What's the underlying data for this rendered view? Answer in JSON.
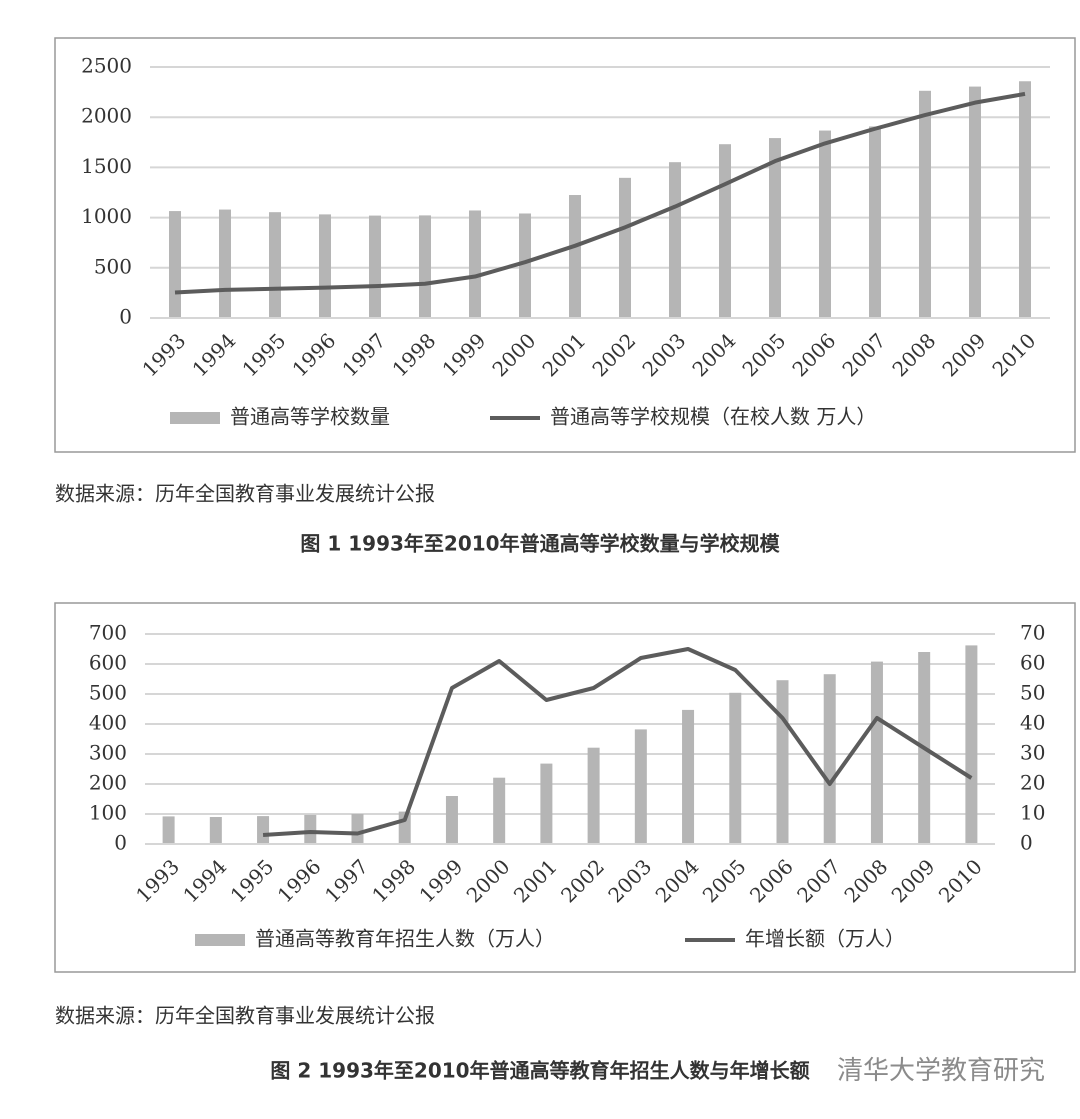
{
  "chart_data": [
    {
      "type": "bar-line",
      "categories": [
        "1993",
        "1994",
        "1995",
        "1996",
        "1997",
        "1998",
        "1999",
        "2000",
        "2001",
        "2002",
        "2003",
        "2004",
        "2005",
        "2006",
        "2007",
        "2008",
        "2009",
        "2010"
      ],
      "series": [
        {
          "name": "普通高等学校数量",
          "type": "bar",
          "color": "#b5b5b5",
          "values": [
            1065,
            1080,
            1054,
            1032,
            1020,
            1022,
            1071,
            1041,
            1225,
            1396,
            1552,
            1731,
            1792,
            1867,
            1908,
            2263,
            2305,
            2358
          ]
        },
        {
          "name": "普通高等学校规模（在校人数 万人）",
          "type": "line",
          "color": "#5c5c5c",
          "values": [
            254,
            280,
            291,
            302,
            317,
            341,
            413,
            556,
            719,
            903,
            1109,
            1333,
            1562,
            1739,
            1885,
            2021,
            2145,
            2232
          ]
        }
      ],
      "ylim": [
        0,
        2500
      ],
      "yticks": [
        0,
        500,
        1000,
        1500,
        2000,
        2500
      ],
      "grid": true,
      "source": "数据来源：历年全国教育事业发展统计公报",
      "caption": "图 1 1993年至2010年普通高等学校数量与学校规模"
    },
    {
      "type": "bar-line",
      "categories": [
        "1993",
        "1994",
        "1995",
        "1996",
        "1997",
        "1998",
        "1999",
        "2000",
        "2001",
        "2002",
        "2003",
        "2004",
        "2005",
        "2006",
        "2007",
        "2008",
        "2009",
        "2010"
      ],
      "series": [
        {
          "name": "普通高等教育年招生人数（万人）",
          "type": "bar",
          "color": "#b5b5b5",
          "values": [
            92,
            90,
            93,
            97,
            100,
            108,
            160,
            221,
            268,
            321,
            382,
            447,
            504,
            546,
            566,
            608,
            640,
            662
          ]
        },
        {
          "name": "年增长额（万人）",
          "type": "line",
          "color": "#5c5c5c",
          "axis": "y2",
          "values": [
            null,
            null,
            3,
            4,
            3.5,
            8,
            52,
            61,
            48,
            52,
            62,
            65,
            58,
            42,
            20,
            42,
            32,
            22
          ]
        }
      ],
      "ylim": [
        0,
        700
      ],
      "yticks": [
        0,
        100,
        200,
        300,
        400,
        500,
        600,
        700
      ],
      "y2lim": [
        0,
        70
      ],
      "y2ticks": [
        0,
        10,
        20,
        30,
        40,
        50,
        60,
        70
      ],
      "grid": true,
      "source": "数据来源：历年全国教育事业发展统计公报",
      "caption": "图 2 1993年至2010年普通高等教育年招生人数与年增长额"
    }
  ],
  "watermark": "清华大学教育研究"
}
